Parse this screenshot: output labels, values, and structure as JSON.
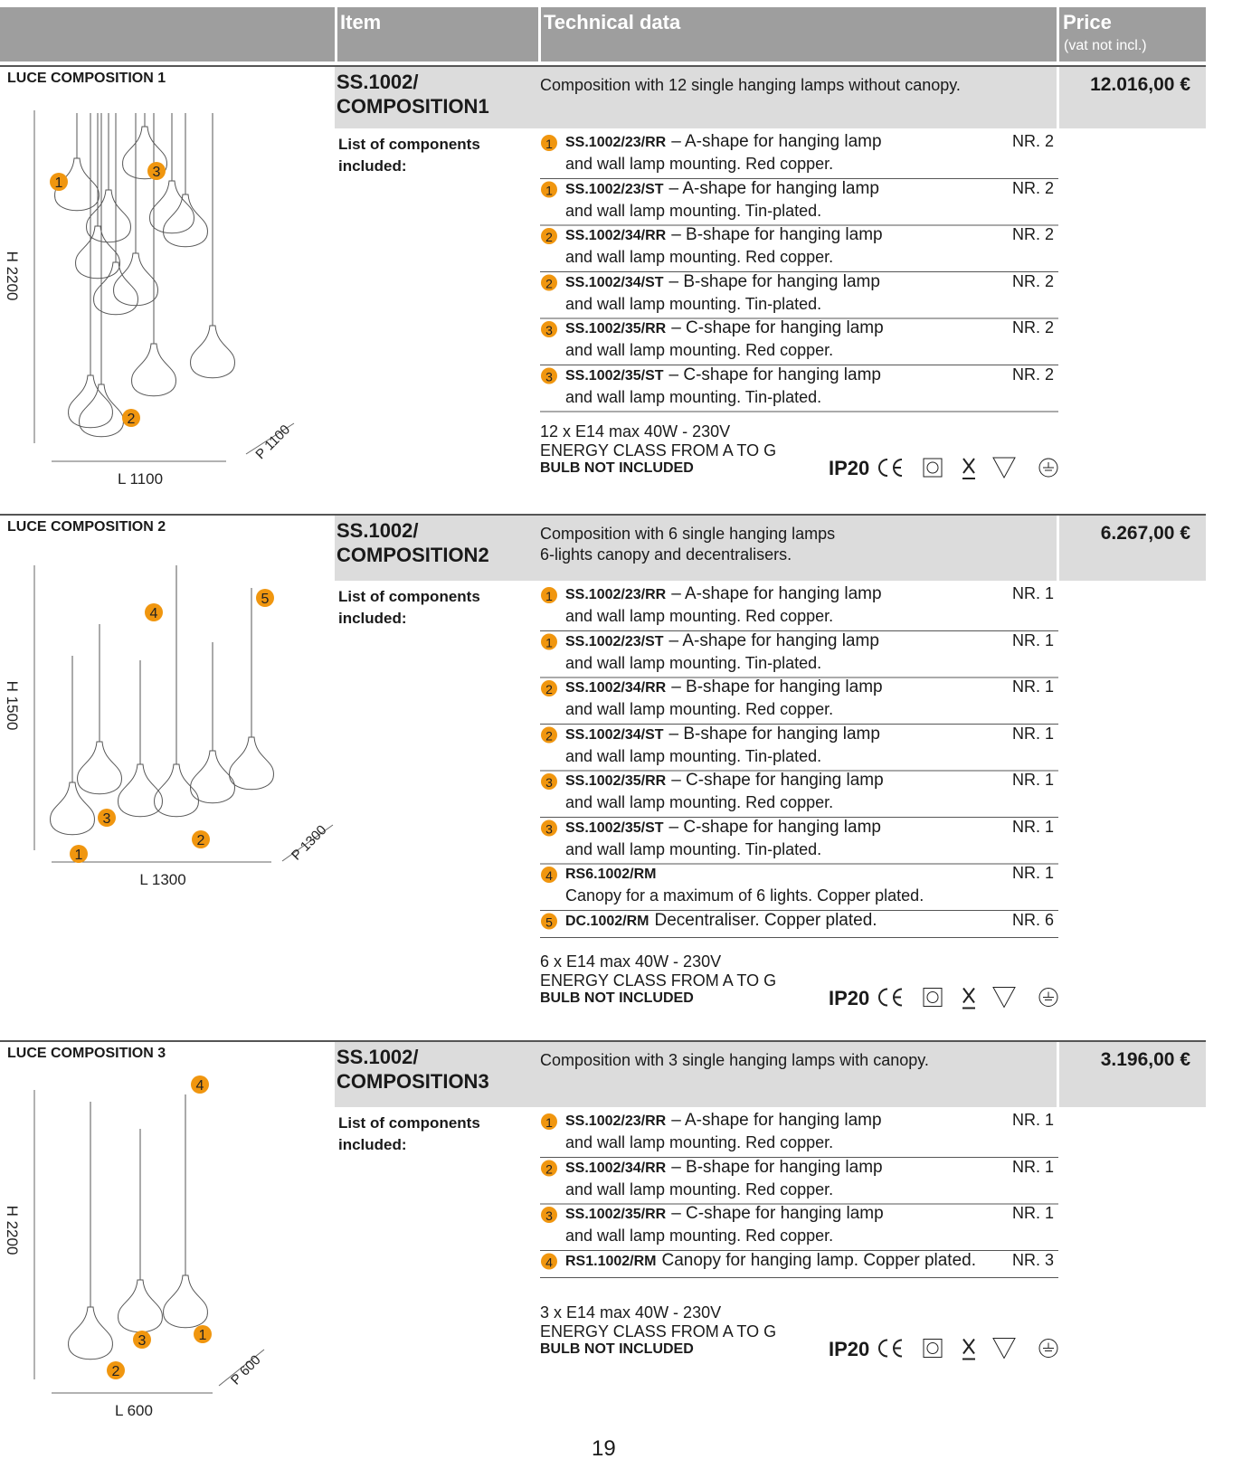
{
  "header": {
    "item": "Item",
    "technical": "Technical data",
    "price": "Price",
    "price_note": "(vat not incl.)"
  },
  "compositions": [
    {
      "title": "LUCE COMPOSITION 1",
      "height": "H 2200",
      "width": "L 1100",
      "depth": "P 1100",
      "markers": [
        "1",
        "3",
        "2"
      ],
      "item": [
        "SS.1002/",
        "COMPOSITION1"
      ],
      "description": [
        "Composition with 12 single hanging lamps without canopy."
      ],
      "price": "12.016,00  €",
      "components_label": "List of components included:",
      "components": [
        {
          "n": "1",
          "code": "SS.1002/23/RR",
          "text": "– A-shape for hanging lamp",
          "text2": "and wall lamp mounting. Red copper.",
          "qty": "NR. 2"
        },
        {
          "n": "1",
          "code": "SS.1002/23/ST",
          "text": "– A-shape for hanging lamp",
          "text2": "and wall lamp mounting. Tin-plated.",
          "qty": "NR. 2"
        },
        {
          "n": "2",
          "code": "SS.1002/34/RR",
          "text": "– B-shape for hanging lamp",
          "text2": "and wall lamp mounting. Red copper.",
          "qty": "NR. 2"
        },
        {
          "n": "2",
          "code": "SS.1002/34/ST",
          "text": "– B-shape for hanging lamp",
          "text2": "and wall lamp mounting. Tin-plated.",
          "qty": "NR. 2"
        },
        {
          "n": "3",
          "code": "SS.1002/35/RR",
          "text": "– C-shape for hanging lamp",
          "text2": "and wall lamp mounting. Red copper.",
          "qty": "NR. 2"
        },
        {
          "n": "3",
          "code": "SS.1002/35/ST",
          "text": "– C-shape for hanging lamp",
          "text2": "and wall lamp mounting. Tin-plated.",
          "qty": "NR. 2"
        }
      ],
      "specs": [
        "12 x E14 max 40W - 230V",
        "ENERGY CLASS FROM A TO G"
      ],
      "bulb": "BULB NOT INCLUDED",
      "rating": "IP20"
    },
    {
      "title": "LUCE COMPOSITION 2",
      "height": "H 1500",
      "width": "L 1300",
      "depth": "P 1300",
      "markers": [
        "4",
        "5",
        "3",
        "2",
        "1"
      ],
      "item": [
        "SS.1002/",
        "COMPOSITION2"
      ],
      "description": [
        "Composition with 6 single hanging lamps",
        "6-lights canopy and decentralisers."
      ],
      "price": "6.267,00 €",
      "components_label": "List of components included:",
      "components": [
        {
          "n": "1",
          "code": "SS.1002/23/RR",
          "text": "– A-shape for hanging lamp",
          "text2": "and wall lamp mounting. Red copper.",
          "qty": "NR. 1"
        },
        {
          "n": "1",
          "code": "SS.1002/23/ST",
          "text": "– A-shape for hanging lamp",
          "text2": "and wall lamp mounting. Tin-plated.",
          "qty": "NR. 1"
        },
        {
          "n": "2",
          "code": "SS.1002/34/RR",
          "text": "– B-shape for hanging lamp",
          "text2": "and wall lamp mounting. Red copper.",
          "qty": "NR. 1"
        },
        {
          "n": "2",
          "code": "SS.1002/34/ST",
          "text": "– B-shape for hanging lamp",
          "text2": "and wall lamp mounting. Tin-plated.",
          "qty": "NR. 1"
        },
        {
          "n": "3",
          "code": "SS.1002/35/RR",
          "text": "– C-shape for hanging lamp",
          "text2": "and wall lamp mounting. Red copper.",
          "qty": "NR. 1"
        },
        {
          "n": "3",
          "code": "SS.1002/35/ST",
          "text": "– C-shape for hanging lamp",
          "text2": "and wall lamp mounting. Tin-plated.",
          "qty": "NR. 1"
        },
        {
          "n": "4",
          "code": "RS6.1002/RM",
          "text2": "Canopy for a maximum of 6 lights. Copper plated.",
          "qty": "NR. 1"
        },
        {
          "n": "5",
          "code": "DC.1002/RM",
          "text": "Decentraliser. Copper plated.",
          "qty": "NR. 6"
        }
      ],
      "specs": [
        "6 x E14 max 40W - 230V",
        "ENERGY CLASS FROM A TO G"
      ],
      "bulb": "BULB NOT INCLUDED",
      "rating": "IP20"
    },
    {
      "title": "LUCE COMPOSITION 3",
      "height": "H 2200",
      "width": "L 600",
      "depth": "P 600",
      "markers": [
        "4",
        "3",
        "1",
        "2"
      ],
      "item": [
        "SS.1002/",
        "COMPOSITION3"
      ],
      "description": [
        "Composition with 3 single hanging lamps with canopy."
      ],
      "price": "3.196,00  €",
      "components_label": "List of components included:",
      "components": [
        {
          "n": "1",
          "code": "SS.1002/23/RR",
          "text": "– A-shape for hanging lamp",
          "text2": "and wall lamp mounting. Red copper.",
          "qty": "NR. 1"
        },
        {
          "n": "2",
          "code": "SS.1002/34/RR",
          "text": "– B-shape for hanging lamp",
          "text2": "and wall lamp mounting. Red copper.",
          "qty": "NR. 1"
        },
        {
          "n": "3",
          "code": "SS.1002/35/RR",
          "text": "– C-shape for hanging lamp",
          "text2": "and wall lamp mounting. Red copper.",
          "qty": "NR. 1"
        },
        {
          "n": "4",
          "code": "RS1.1002/RM",
          "text": "Canopy for hanging lamp. Copper plated.",
          "qty": "NR. 3"
        }
      ],
      "specs": [
        "3 x E14 max 40W - 230V",
        "ENERGY CLASS FROM A TO G"
      ],
      "bulb": "BULB NOT INCLUDED",
      "rating": "IP20"
    }
  ],
  "page_number": "19"
}
